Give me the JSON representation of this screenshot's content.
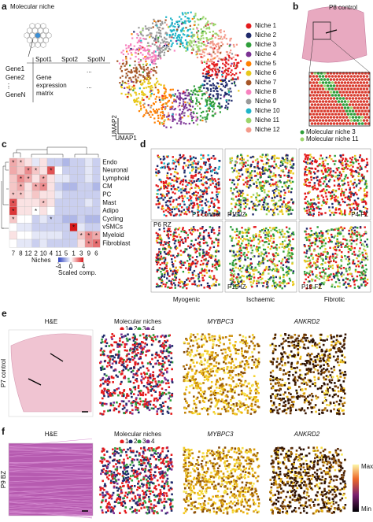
{
  "panels": {
    "a": {
      "letter": "a",
      "title": "Molecular niche",
      "spots": [
        "Spot1",
        "Spot2",
        "SpotN"
      ],
      "genes": [
        "Gene1",
        "Gene2",
        "⋮",
        "GeneN"
      ],
      "matrix": [
        "Gene",
        "expression",
        "matrix"
      ],
      "dots": "...",
      "umap_x": "UMAP1",
      "umap_y": "UMAP2",
      "niches": [
        {
          "name": "Niche 1",
          "color": "#e41a1c"
        },
        {
          "name": "Niche 2",
          "color": "#1f2a6b"
        },
        {
          "name": "Niche 3",
          "color": "#2e9e3a"
        },
        {
          "name": "Niche 4",
          "color": "#7b3294"
        },
        {
          "name": "Niche 5",
          "color": "#ff7f00"
        },
        {
          "name": "Niche 6",
          "color": "#e8c81c"
        },
        {
          "name": "Niche 7",
          "color": "#a65628"
        },
        {
          "name": "Niche 8",
          "color": "#f781bf"
        },
        {
          "name": "Niche 9",
          "color": "#9a9a9a"
        },
        {
          "name": "Niche 10",
          "color": "#1fb5c9"
        },
        {
          "name": "Niche 11",
          "color": "#9bd46a"
        },
        {
          "name": "Niche 12",
          "color": "#f49a8a"
        }
      ]
    },
    "b": {
      "letter": "b",
      "sample": "P8 control",
      "legend": [
        {
          "name": "Molecular niche 3",
          "color": "#2e9e3a"
        },
        {
          "name": "Molecular niche 11",
          "color": "#9bd46a"
        }
      ]
    },
    "c": {
      "letter": "c",
      "rows": [
        "Endo",
        "Neuronal",
        "Lymphoid",
        "CM",
        "PC",
        "Mast",
        "Adipo",
        "Cycling",
        "vSMCs",
        "Myeloid",
        "Fibroblast"
      ],
      "cols": [
        "7",
        "8",
        "12",
        "2",
        "10",
        "4",
        "11",
        "5",
        "1",
        "3",
        "9",
        "6"
      ],
      "values": [
        [
          1.5,
          1,
          0.5,
          -0.5,
          0.5,
          -1,
          -1,
          -1.5,
          -1,
          -1,
          -0.5,
          -1
        ],
        [
          1.5,
          1,
          2,
          1,
          0.5,
          3,
          0,
          -1,
          -1,
          -1,
          -0.5,
          -1
        ],
        [
          1,
          2,
          1.5,
          0.5,
          1.5,
          0.5,
          -0.5,
          -0.5,
          -1,
          -1,
          -0.5,
          -1
        ],
        [
          1,
          1.5,
          0.5,
          1.5,
          2,
          0.5,
          -1,
          -1.5,
          -1.5,
          -1,
          -1,
          -1.5
        ],
        [
          1,
          1,
          0.5,
          1,
          0.5,
          0.5,
          -0.5,
          -1,
          -1,
          -1,
          -1,
          -1
        ],
        [
          3,
          0.5,
          0.5,
          0.5,
          1,
          0.5,
          -1,
          -1,
          -1,
          -1,
          -0.5,
          -1
        ],
        [
          3.5,
          0.5,
          0.5,
          0,
          0.5,
          0,
          -1,
          -1,
          -1,
          -1,
          -1,
          -1
        ],
        [
          1,
          0,
          0,
          -1,
          -0.5,
          -1,
          -1,
          -1.5,
          -1.5,
          -1,
          -1.5,
          -1.5
        ],
        [
          0,
          -0.5,
          -0.5,
          -1,
          -1,
          -1,
          -1,
          -1,
          4,
          -0.5,
          -1,
          -1
        ],
        [
          0.5,
          0,
          0,
          -0.5,
          -0.5,
          -0.5,
          -0.5,
          -1,
          -1,
          1,
          2,
          1.5
        ],
        [
          0,
          -0.5,
          -0.5,
          -1,
          -0.5,
          -1,
          -1,
          -1,
          -1,
          0.5,
          2,
          2.5
        ]
      ],
      "star": "*",
      "significant": [
        [
          0,
          0
        ],
        [
          0,
          1
        ],
        [
          1,
          2
        ],
        [
          1,
          3
        ],
        [
          1,
          5
        ],
        [
          2,
          1
        ],
        [
          2,
          2
        ],
        [
          2,
          4
        ],
        [
          3,
          1
        ],
        [
          3,
          3
        ],
        [
          3,
          4
        ],
        [
          4,
          0
        ],
        [
          4,
          1
        ],
        [
          5,
          0
        ],
        [
          5,
          4
        ],
        [
          6,
          0
        ],
        [
          7,
          0
        ],
        [
          8,
          8
        ],
        [
          9,
          9
        ],
        [
          9,
          10
        ],
        [
          9,
          11
        ],
        [
          10,
          10
        ],
        [
          10,
          11
        ],
        [
          6,
          3
        ],
        [
          7,
          5
        ]
      ],
      "axis": "Niches",
      "cbar_label": "Scaled comp.",
      "ticks": [
        -4,
        0,
        4
      ],
      "lim": [
        -4,
        4
      ]
    },
    "d": {
      "letter": "d",
      "samples": [
        "P1 control",
        "P15 IZ",
        "P4 FZ",
        "P6 RZ",
        "P15 IZ",
        "P18 FZ"
      ],
      "groups": [
        {
          "name": "Myogenic",
          "color": "#c0272d"
        },
        {
          "name": "Ischaemic",
          "color": "#3aa537"
        },
        {
          "name": "Fibrotic",
          "color": "#2a8fc9"
        }
      ]
    },
    "e": {
      "letter": "e",
      "side": "P7 control",
      "he": "H&E",
      "niche_title": "Molecular niches",
      "niche_nums": [
        "1",
        "2",
        "3",
        "4"
      ],
      "gene1": "MYBPC3",
      "gene2": "ANKRD2"
    },
    "f": {
      "letter": "f",
      "side": "P9 BZ",
      "he": "H&E",
      "niche_title": "Molecular niches",
      "niche_nums": [
        "1",
        "2",
        "3",
        "4"
      ],
      "gene1": "MYBPC3",
      "gene2": "ANKRD2",
      "max": "Max",
      "min": "Min"
    }
  }
}
